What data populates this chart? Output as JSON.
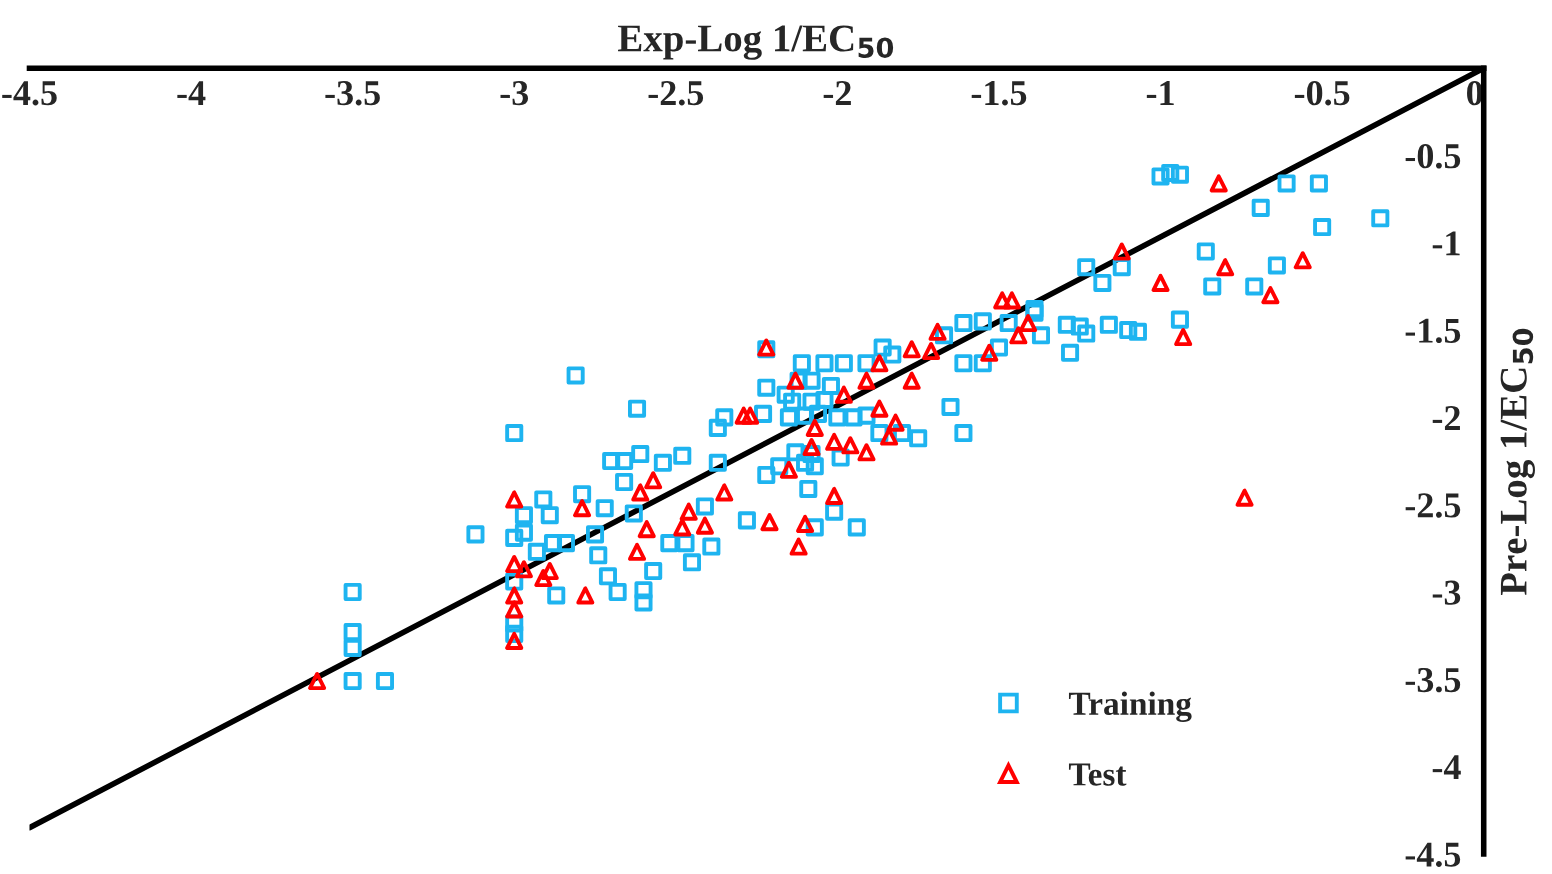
{
  "chart_data": {
    "type": "scatter",
    "xlabel": "Exp-Log 1/EC$_{50}$",
    "ylabel": "Pre-Log 1/EC$_{50}$",
    "xlim": [
      -4.5,
      0
    ],
    "ylim": [
      -4.5,
      0
    ],
    "xticks": [
      -4.5,
      -4,
      -3.5,
      -3,
      -2.5,
      -2,
      -1.5,
      -1,
      -0.5,
      0
    ],
    "yticks": [
      -4.5,
      -4,
      -3.5,
      -3,
      -2.5,
      -2,
      -1.5,
      -1,
      -0.5
    ],
    "legend": "bottom right",
    "series": [
      {
        "name": "Training",
        "type": "scatter",
        "marker": "square",
        "color": "#1eb4f0",
        "x": [
          -2.81,
          -3.0,
          -2.62,
          -2.7,
          -2.66,
          -2.61,
          -2.54,
          -2.48,
          -2.66,
          -2.91,
          -2.79,
          -2.72,
          -2.97,
          -2.89,
          -3.12,
          -3.0,
          -2.97,
          -2.93,
          -2.88,
          -2.84,
          -2.75,
          -2.74,
          -2.63,
          -2.52,
          -2.47,
          -2.45,
          -2.39,
          -2.57,
          -2.71,
          -2.68,
          -2.6,
          -2.6,
          -2.87,
          -3.0,
          -3.0,
          -3.0,
          -3.5,
          -3.5,
          -3.5,
          -3.5,
          -3.4,
          -2.37,
          -2.35,
          -2.37,
          -2.41,
          -2.28,
          -2.22,
          -2.11,
          -2.04,
          -1.98,
          -1.91,
          -1.86,
          -1.83,
          -2.22,
          -2.16,
          -2.12,
          -2.08,
          -2.02,
          -2.14,
          -2.08,
          -2.04,
          -2.15,
          -2.1,
          -2.06,
          -2.0,
          -1.95,
          -1.91,
          -2.23,
          -1.87,
          -1.8,
          -1.75,
          -1.65,
          -1.61,
          -2.13,
          -2.08,
          -1.99,
          -2.1,
          -2.07,
          -2.09,
          -2.22,
          -2.18,
          -2.01,
          -2.07,
          -1.94,
          -1.61,
          -1.55,
          -1.67,
          -1.61,
          -1.55,
          -1.5,
          -1.47,
          -1.39,
          -1.0,
          -0.97,
          -0.94,
          -0.61,
          -0.51,
          -0.69,
          -0.5,
          -0.32,
          -0.86,
          -0.64,
          -0.84,
          -0.71,
          -1.23,
          -1.12,
          -1.18,
          -1.39,
          -1.37,
          -1.29,
          -1.25,
          -1.23,
          -1.16,
          -1.1,
          -1.07,
          -1.28,
          -0.94
        ],
        "values": [
          -1.76,
          -2.09,
          -1.95,
          -2.25,
          -2.25,
          -2.21,
          -2.26,
          -2.22,
          -2.37,
          -2.47,
          -2.44,
          -2.52,
          -2.56,
          -2.56,
          -2.67,
          -2.69,
          -2.66,
          -2.77,
          -2.72,
          -2.72,
          -2.67,
          -2.79,
          -2.55,
          -2.72,
          -2.72,
          -2.83,
          -2.74,
          -2.88,
          -2.91,
          -3.0,
          -2.99,
          -3.06,
          -3.02,
          -2.94,
          -3.18,
          -3.24,
          -3.0,
          -3.23,
          -3.32,
          -3.51,
          -3.51,
          -2.06,
          -2.0,
          -2.26,
          -2.51,
          -2.59,
          -1.61,
          -1.69,
          -1.69,
          -1.69,
          -1.69,
          -1.6,
          -1.64,
          -1.83,
          -1.87,
          -1.79,
          -1.79,
          -1.82,
          -1.91,
          -1.91,
          -1.9,
          -2.0,
          -1.99,
          -1.98,
          -2.0,
          -2.0,
          -1.99,
          -1.98,
          -2.09,
          -2.09,
          -2.12,
          -1.94,
          -2.09,
          -2.2,
          -2.21,
          -2.23,
          -2.26,
          -2.28,
          -2.41,
          -2.33,
          -2.28,
          -2.54,
          -2.63,
          -2.63,
          -1.46,
          -1.45,
          -1.53,
          -1.69,
          -1.69,
          -1.6,
          -1.46,
          -1.4,
          -0.62,
          -0.6,
          -0.61,
          -0.66,
          -0.66,
          -0.8,
          -0.91,
          -0.86,
          -1.05,
          -1.13,
          -1.25,
          -1.25,
          -1.14,
          -1.14,
          -1.23,
          -1.38,
          -1.53,
          -1.47,
          -1.48,
          -1.52,
          -1.47,
          -1.5,
          -1.51,
          -1.63,
          -1.44
        ]
      },
      {
        "name": "Test",
        "type": "scatter",
        "marker": "triangle",
        "color": "#ff0000",
        "x": [
          -3.0,
          -3.61,
          -3.0,
          -2.97,
          -2.91,
          -2.89,
          -3.0,
          -3.0,
          -3.0,
          -2.78,
          -2.79,
          -2.57,
          -2.61,
          -2.59,
          -2.62,
          -2.46,
          -2.48,
          -2.41,
          -2.35,
          -2.29,
          -2.27,
          -2.22,
          -2.13,
          -1.98,
          -1.91,
          -1.87,
          -1.77,
          -1.71,
          -1.69,
          -1.77,
          -1.87,
          -1.82,
          -1.84,
          -2.07,
          -2.01,
          -1.96,
          -1.91,
          -2.08,
          -2.15,
          -2.01,
          -2.1,
          -2.12,
          -2.21,
          -1.53,
          -1.49,
          -1.46,
          -1.41,
          -1.44,
          -0.82,
          -1.12,
          -0.8,
          -1.0,
          -0.66,
          -0.56,
          -0.93,
          -0.74
        ],
        "values": [
          -2.47,
          -3.51,
          -2.84,
          -2.87,
          -2.92,
          -2.88,
          -3.02,
          -3.1,
          -3.28,
          -3.02,
          -2.52,
          -2.36,
          -2.43,
          -2.64,
          -2.77,
          -2.54,
          -2.63,
          -2.62,
          -2.43,
          -1.99,
          -1.99,
          -1.6,
          -1.79,
          -1.87,
          -1.79,
          -1.69,
          -1.61,
          -1.62,
          -1.51,
          -1.79,
          -1.95,
          -2.03,
          -2.11,
          -2.06,
          -2.14,
          -2.16,
          -2.2,
          -2.17,
          -2.3,
          -2.45,
          -2.61,
          -2.74,
          -2.6,
          -1.63,
          -1.33,
          -1.33,
          -1.46,
          -1.53,
          -0.66,
          -1.05,
          -1.14,
          -1.23,
          -1.3,
          -1.1,
          -1.54,
          -2.46
        ]
      },
      {
        "type": "line",
        "color": "#000000",
        "x": [
          -4.5,
          0
        ],
        "values": [
          -4.35,
          0
        ]
      }
    ]
  }
}
